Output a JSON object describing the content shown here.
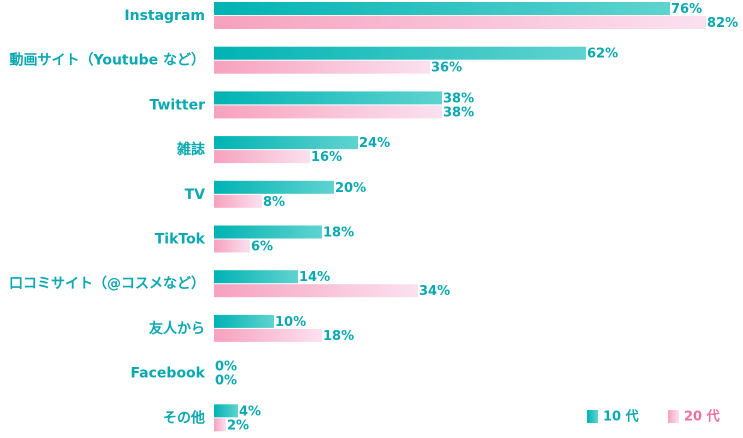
{
  "chart_data": {
    "type": "bar",
    "orientation": "horizontal",
    "categories": [
      "Instagram",
      "動画サイト（Youtube など）",
      "Twitter",
      "雑誌",
      "TV",
      "TikTok",
      "口コミサイト（@コスメなど）",
      "友人から",
      "Facebook",
      "その他"
    ],
    "series": [
      {
        "name": "10 代",
        "values": [
          76,
          62,
          38,
          24,
          20,
          18,
          14,
          10,
          0,
          4
        ]
      },
      {
        "name": "20 代",
        "values": [
          82,
          36,
          38,
          16,
          8,
          6,
          34,
          18,
          0,
          2
        ]
      }
    ],
    "value_suffix": "%",
    "xlim": [
      0,
      100
    ],
    "grid": false,
    "legend_position": "bottom-right",
    "colors": {
      "series_1_start": "#00b3b3",
      "series_1_end": "#5fd3d0",
      "series_2_start": "#f7a1bd",
      "series_2_end": "#fbe1f0",
      "series_1_label": "#0aa8b0",
      "series_2_label": "#ef6f9f",
      "category_label": "#0aa8b0"
    }
  }
}
